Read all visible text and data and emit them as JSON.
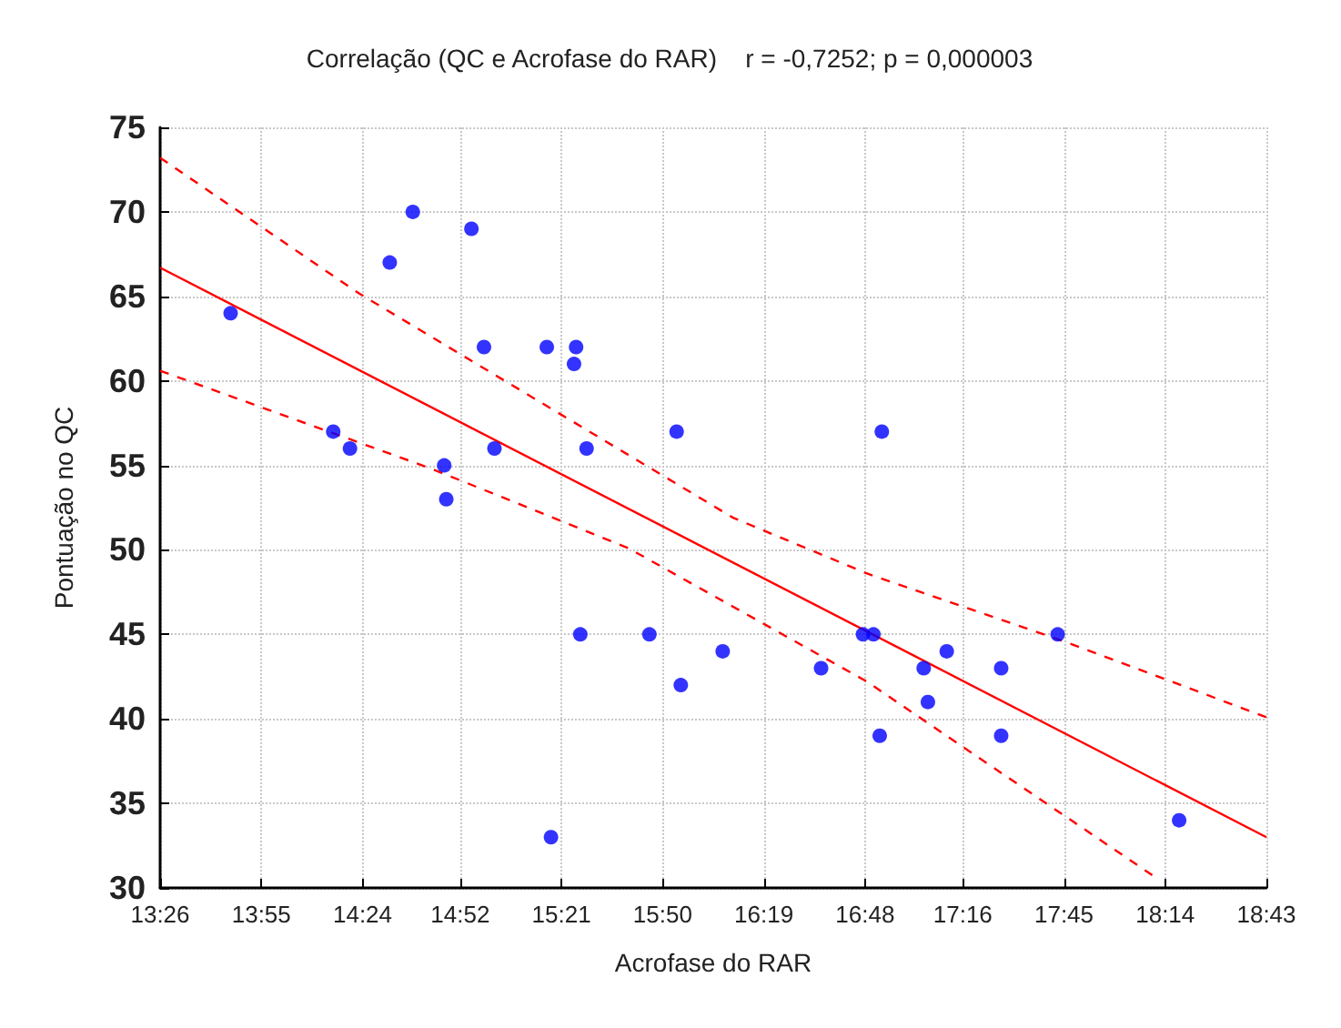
{
  "chart_data": {
    "type": "scatter",
    "title": "Correlação (QC e Acrofase do RAR)    r = -0,7252; p = 0,000003",
    "xlabel": "Acrofase do RAR",
    "ylabel": "Pontuação no QC",
    "xlim": [
      13.4333,
      18.7167
    ],
    "xticks": [
      {
        "value": 13.4333,
        "label": "13:26"
      },
      {
        "value": 13.9167,
        "label": "13:55"
      },
      {
        "value": 14.4,
        "label": "14:24"
      },
      {
        "value": 14.8667,
        "label": "14:52"
      },
      {
        "value": 15.35,
        "label": "15:21"
      },
      {
        "value": 15.8333,
        "label": "15:50"
      },
      {
        "value": 16.3167,
        "label": "16:19"
      },
      {
        "value": 16.8,
        "label": "16:48"
      },
      {
        "value": 17.2667,
        "label": "17:16"
      },
      {
        "value": 17.75,
        "label": "17:45"
      },
      {
        "value": 18.2333,
        "label": "18:14"
      },
      {
        "value": 18.7167,
        "label": "18:43"
      }
    ],
    "ylim": [
      30,
      75
    ],
    "yticks": [
      30,
      35,
      40,
      45,
      50,
      55,
      60,
      65,
      70,
      75
    ],
    "grid": true,
    "series": [
      {
        "color": "#0000ff",
        "marker": "circle",
        "x": [
          13.77,
          14.26,
          14.34,
          14.53,
          14.64,
          14.79,
          14.8,
          14.92,
          14.98,
          15.03,
          15.28,
          15.3,
          15.41,
          15.42,
          15.44,
          15.47,
          15.77,
          15.9,
          15.92,
          16.12,
          16.59,
          16.79,
          16.84,
          16.87,
          16.88,
          17.08,
          17.1,
          17.19,
          17.45,
          17.45,
          17.72,
          18.3
        ],
        "values": [
          64,
          57,
          56,
          67,
          70,
          55,
          53,
          69,
          62,
          56,
          62,
          33,
          61,
          62,
          45,
          56,
          45,
          57,
          42,
          44,
          43,
          45,
          45,
          39,
          57,
          43,
          41,
          44,
          43,
          39,
          45,
          34
        ]
      },
      {
        "type": "line",
        "color": "#ff0000",
        "line_style": "solid",
        "x": [
          13.4333,
          18.7167
        ],
        "values": [
          66.7,
          33.0
        ]
      },
      {
        "type": "line",
        "color": "#ff0000",
        "line_style": "dashed",
        "x": [
          13.4333,
          14.38,
          16.17,
          16.81,
          17.77,
          18.7167
        ],
        "values": [
          73.2,
          65.2,
          51.9,
          48.6,
          44.5,
          40.1
        ]
      },
      {
        "type": "line",
        "color": "#ff0000",
        "line_style": "dashed",
        "x": [
          13.4333,
          14.73,
          15.67,
          16.81,
          17.26,
          18.19
        ],
        "values": [
          60.6,
          54.8,
          50.1,
          42.2,
          38.4,
          30.6
        ]
      }
    ]
  }
}
